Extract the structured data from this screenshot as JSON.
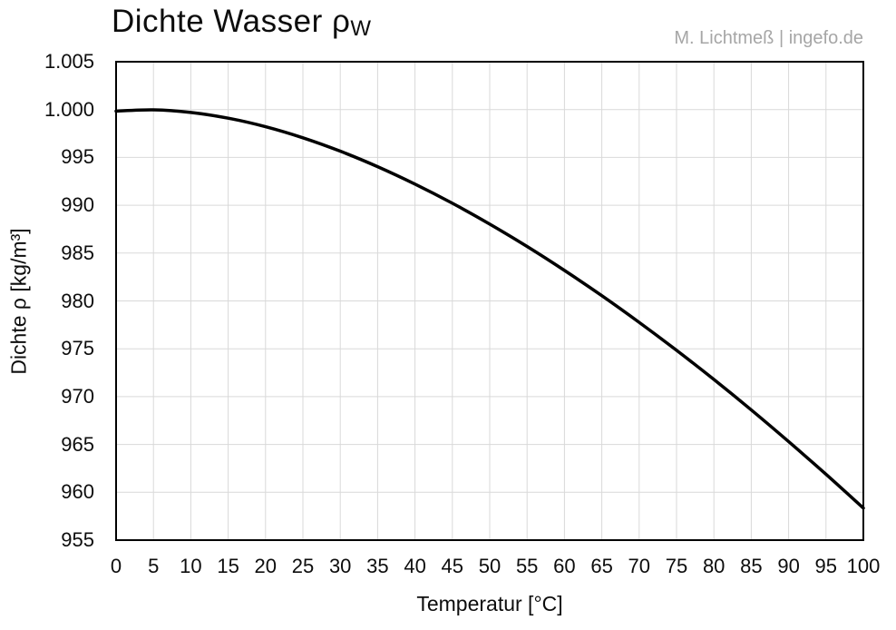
{
  "chart": {
    "title_main": "Dichte Wasser ρ",
    "title_subscript": "W",
    "watermark": "M. Lichtmeß | ingefo.de",
    "colors": {
      "curve": "#000000",
      "border": "#000000",
      "grid": "#d9d9d9",
      "title": "#0d0d0d",
      "watermark": "#a6a6a6"
    }
  },
  "chart_data": {
    "type": "line",
    "title": "Dichte Wasser ρW",
    "xlabel": "Temperatur [°C]",
    "ylabel": "Dichte ρ [kg/m³]",
    "x": [
      0,
      5,
      10,
      15,
      20,
      25,
      30,
      35,
      40,
      45,
      50,
      55,
      60,
      65,
      70,
      75,
      80,
      85,
      90,
      95,
      100
    ],
    "values": [
      999.84,
      999.97,
      999.7,
      999.1,
      998.21,
      997.05,
      995.65,
      994.03,
      992.21,
      990.21,
      988.03,
      985.69,
      983.19,
      980.55,
      977.76,
      974.84,
      971.79,
      968.61,
      965.3,
      961.88,
      958.35
    ],
    "series_name": "Dichte Wasser",
    "xlim": [
      0,
      100
    ],
    "ylim": [
      955,
      1005
    ],
    "x_ticks": [
      0,
      5,
      10,
      15,
      20,
      25,
      30,
      35,
      40,
      45,
      50,
      55,
      60,
      65,
      70,
      75,
      80,
      85,
      90,
      95,
      100
    ],
    "x_tick_labels": [
      "0",
      "5",
      "10",
      "15",
      "20",
      "25",
      "30",
      "35",
      "40",
      "45",
      "50",
      "55",
      "60",
      "65",
      "70",
      "75",
      "80",
      "85",
      "90",
      "95",
      "100"
    ],
    "y_ticks": [
      955,
      960,
      965,
      970,
      975,
      980,
      985,
      990,
      995,
      1000,
      1005
    ],
    "y_tick_labels": [
      "955",
      "960",
      "965",
      "970",
      "975",
      "980",
      "985",
      "990",
      "995",
      "1.000",
      "1.005"
    ],
    "grid": true,
    "legend": false,
    "line_width": 3.5,
    "line_color": "#000000",
    "grid_color": "#d9d9d9"
  }
}
